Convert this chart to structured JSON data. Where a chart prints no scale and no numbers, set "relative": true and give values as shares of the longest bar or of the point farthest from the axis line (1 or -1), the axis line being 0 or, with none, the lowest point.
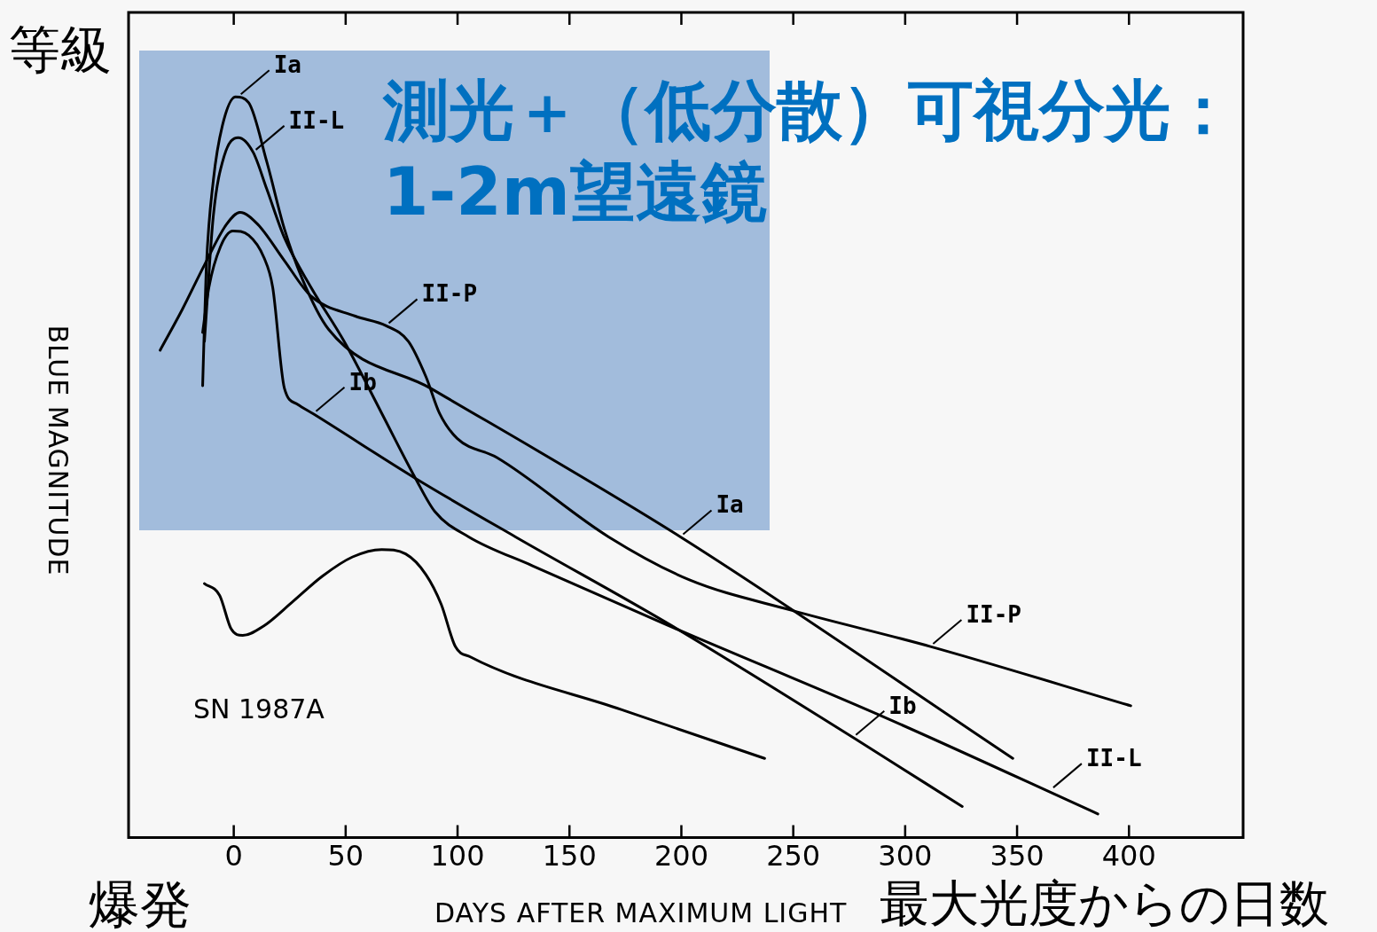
{
  "chart_data": {
    "type": "line",
    "relative": true,
    "xlabel": "DAYS AFTER MAXIMUM LIGHT",
    "ylabel": "BLUE MAGNITUDE",
    "xlim": [
      -47,
      451
    ],
    "xticks": [
      0,
      50,
      100,
      150,
      200,
      250,
      300,
      350,
      400
    ],
    "grid": false,
    "legend": false,
    "marker": "none",
    "line_style": "solid",
    "tick_labels": "x",
    "series": [
      {
        "color": "#000000",
        "x": [
          -13.9,
          -12.3,
          -9.1,
          -5.1,
          0.8,
          6.7,
          14.7,
          22.6,
          30.5,
          42.4,
          88.3,
          199.6,
          348.1
        ],
        "values": [
          0.61,
          0.767,
          0.888,
          0.961,
          1.0,
          0.992,
          0.913,
          0.822,
          0.755,
          0.686,
          0.606,
          0.406,
          0.107
        ]
      },
      {
        "color": "#000000",
        "x": [
          -13.1,
          -9.1,
          -4.4,
          2.0,
          8.7,
          14.7,
          22.6,
          34.5,
          49.5,
          66.1,
          81.2,
          89.9,
          105,
          133.5,
          193.7,
          291.9,
          386.1
        ],
        "values": [
          0.67,
          0.84,
          0.919,
          0.945,
          0.925,
          0.876,
          0.81,
          0.743,
          0.669,
          0.573,
          0.485,
          0.44,
          0.406,
          0.367,
          0.287,
          0.161,
          0.032
        ]
      },
      {
        "color": "#000000",
        "x": [
          -32.9,
          -23,
          -13.1,
          -3.2,
          2.8,
          10.7,
          22.6,
          34.5,
          54.3,
          68.1,
          78,
          85.9,
          91.9,
          99.8,
          117.6,
          167.5,
          203.6,
          249.1,
          311.3,
          400.8
        ],
        "values": [
          0.658,
          0.713,
          0.773,
          0.828,
          0.844,
          0.828,
          0.779,
          0.731,
          0.704,
          0.691,
          0.67,
          0.622,
          0.573,
          0.539,
          0.513,
          0.406,
          0.348,
          0.307,
          0.258,
          0.178
        ]
      },
      {
        "color": "#000000",
        "x": [
          -13.9,
          -11.1,
          -5.9,
          -0.4,
          6.7,
          13.5,
          17.4,
          22.6,
          28.5,
          35.6,
          81.2,
          125.9,
          195.2,
          276.8,
          325.5
        ],
        "values": [
          0.682,
          0.743,
          0.798,
          0.819,
          0.813,
          0.783,
          0.743,
          0.607,
          0.585,
          0.572,
          0.485,
          0.406,
          0.287,
          0.135,
          0.042
        ]
      },
      {
        "color": "#000000",
        "x": [
          -13.1,
          -6.3,
          -1.2,
          4,
          13.5,
          26.5,
          39.6,
          53.1,
          66.1,
          76.8,
          85.9,
          92.7,
          99,
          105.7,
          173.1,
          237.2
        ],
        "values": [
          0.343,
          0.327,
          0.282,
          0.273,
          0.286,
          0.319,
          0.353,
          0.379,
          0.389,
          0.383,
          0.355,
          0.315,
          0.258,
          0.244,
          0.173,
          0.107
        ]
      }
    ],
    "annotations": [
      "測光＋（低分散）可視分光：1-2m望遠鏡",
      "等級",
      "爆発",
      "最大光度からの日数",
      "SN 1987A",
      {
        "text": "Ia",
        "x": 2.0,
        "y": 1.0
      },
      {
        "text": "II-L",
        "x": 8.7,
        "y": 0.925
      },
      {
        "text": "II-P",
        "x": 68.1,
        "y": 0.691
      },
      {
        "text": "Ib",
        "x": 35.6,
        "y": 0.572
      },
      {
        "text": "Ia",
        "x": 199.6,
        "y": 0.406
      },
      {
        "text": "II-P",
        "x": 311.3,
        "y": 0.258
      },
      {
        "text": "II-L",
        "x": 365,
        "y": 0.064
      },
      {
        "text": "Ib",
        "x": 276.8,
        "y": 0.135
      }
    ]
  }
}
